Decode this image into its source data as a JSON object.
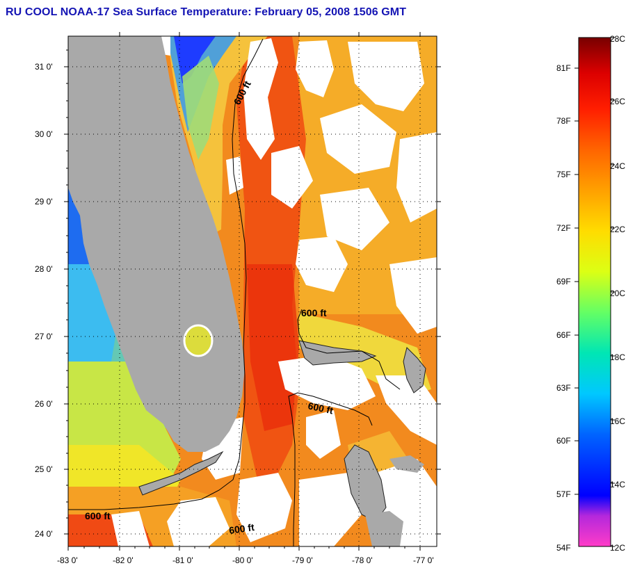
{
  "title": "RU COOL  NOAA-17  Sea Surface Temperature:  February 05, 2008 1506 GMT",
  "map": {
    "lat_labels": [
      "31 0'",
      "30 0'",
      "29 0'",
      "28 0'",
      "27 0'",
      "26 0'",
      "25 0'",
      "24 0'"
    ],
    "lon_labels": [
      "-83 0'",
      "-82 0'",
      "-81 0'",
      "-80 0'",
      "-79 0'",
      "-78 0'",
      "-77 0'"
    ],
    "contour_labels": [
      "600 ft",
      "600 ft",
      "600 ft",
      "600 ft",
      "600 ft"
    ]
  },
  "colorbar": {
    "fahrenheit_labels": [
      "81F",
      "78F",
      "75F",
      "72F",
      "69F",
      "66F",
      "63F",
      "60F",
      "57F",
      "54F"
    ],
    "celsius_labels": [
      "28C",
      "26C",
      "24C",
      "22C",
      "20C",
      "18C",
      "16C",
      "14C",
      "12C"
    ]
  },
  "colors": {
    "land": "#a9a9a9",
    "clouds": "#ffffff",
    "warm": "#f06414",
    "cool": "#14b4f0",
    "title": "#1414b4"
  }
}
